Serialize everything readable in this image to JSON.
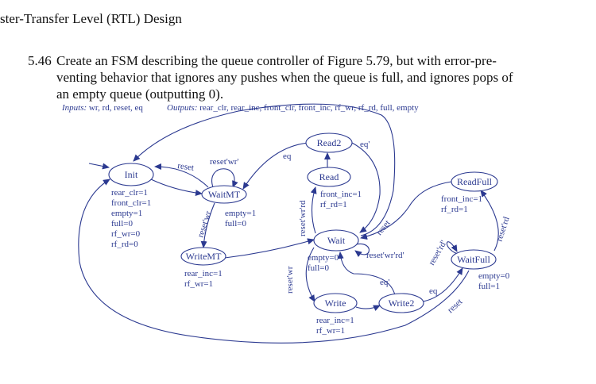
{
  "header": {
    "title": "ster-Transfer Level (RTL) Design"
  },
  "problem": {
    "number": "5.46",
    "line1": "Create an FSM describing the queue controller of Figure 5.79, but with error-pre-",
    "line2": "venting behavior that ignores any pushes when the queue is full, and ignores pops of",
    "line3": "an empty queue (outputting 0)."
  },
  "io": {
    "inputs_label": "Inputs:",
    "inputs": "wr, rd, reset, eq",
    "outputs_label": "Outputs:",
    "outputs": "rear_clr, rear_inc, front_clr, front_inc, rf_wr, rf_rd, full, empty"
  },
  "diagram": {
    "states": {
      "init": "Init",
      "waitmt": "WaitMT",
      "writemt": "WriteMT",
      "read2": "Read2",
      "read": "Read",
      "wait": "Wait",
      "write": "Write",
      "write2": "Write2",
      "readfull": "ReadFull",
      "waitfull": "WaitFull"
    },
    "actions": {
      "init": [
        "rear_clr=1",
        "front_clr=1",
        "empty=1",
        "full=0",
        "rf_wr=0",
        "rf_rd=0"
      ],
      "waitmt": [
        "empty=1",
        "full=0"
      ],
      "writemt": [
        "rear_inc=1",
        "rf_wr=1"
      ],
      "read": [
        "front_inc=1",
        "rf_rd=1"
      ],
      "wait": [
        "empty=0",
        "full=0"
      ],
      "write": [
        "rear_inc=1",
        "rf_wr=1"
      ],
      "readfull": [
        "front_inc=1",
        "rf_rd=1"
      ],
      "waitfull": [
        "empty=0",
        "full=1"
      ]
    },
    "transitions": {
      "init_self_reset": "reset",
      "waitmt_self": "reset'wr'",
      "waitmt_writemt": "reset'wr",
      "read2_eq": "eq",
      "read2_eqn": "eq'",
      "wait_read": "reset'wr'rd",
      "wait_reset": "reset",
      "wait_self": "reset'wr'rd'",
      "wait_write": "reset'wr",
      "write2_eqn": "eq'",
      "write2_eq": "eq",
      "waitfull_self": "reset'rd'",
      "waitfull_readfull": "reset'rd",
      "waitfull_reset": "reset"
    },
    "colors": {
      "ink": "#2b3990"
    }
  }
}
